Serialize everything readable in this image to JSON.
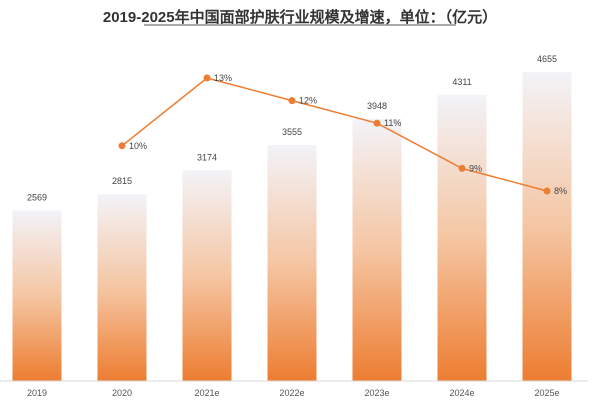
{
  "chart_data": {
    "type": "bar+line",
    "title": "2019-2025年中国面部护肤行业规模及增速，单位：（亿元）",
    "categories": [
      "2019",
      "2020",
      "2021e",
      "2022e",
      "2023e",
      "2024e",
      "2025e"
    ],
    "series": [
      {
        "type": "bar",
        "values": [
          2569,
          2815,
          3174,
          3555,
          3948,
          4311,
          4655
        ],
        "color": "#ED7D31"
      },
      {
        "type": "line",
        "values": [
          null,
          10,
          13,
          12,
          11,
          9,
          8
        ],
        "labels": [
          "",
          "10%",
          "13%",
          "12%",
          "11%",
          "9%",
          "8%"
        ],
        "color": "#ED7D31"
      }
    ],
    "grid": false,
    "legend": "none"
  }
}
